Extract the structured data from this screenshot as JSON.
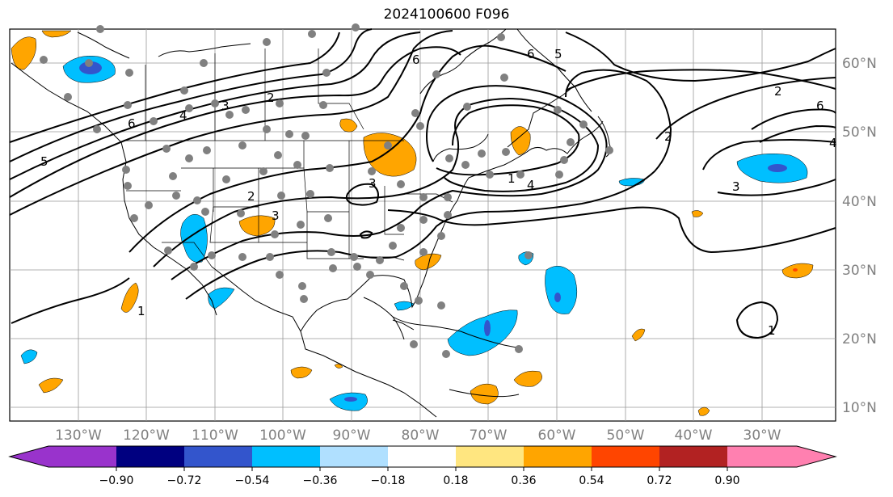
{
  "title": "2024100600 F096",
  "map": {
    "lon_labels": [
      "130°W",
      "120°W",
      "110°W",
      "100°W",
      "90°W",
      "80°W",
      "70°W",
      "60°W",
      "50°W",
      "40°W",
      "30°W"
    ],
    "lat_labels": [
      "60°N",
      "50°N",
      "40°N",
      "30°N",
      "20°N",
      "10°N"
    ],
    "contour_labels": [
      "5",
      "6",
      "4",
      "3",
      "2",
      "6",
      "2",
      "1",
      "3",
      "3",
      "5",
      "6",
      "4",
      "2",
      "3",
      "6",
      "2",
      "4",
      "1",
      "1"
    ]
  },
  "colorbar": {
    "ticks": [
      "−0.90",
      "−0.72",
      "−0.54",
      "−0.36",
      "−0.18",
      "0.18",
      "0.36",
      "0.54",
      "0.72",
      "0.90"
    ],
    "colors": [
      "#9933cc",
      "#000080",
      "#3355cc",
      "#00bfff",
      "#b0e0ff",
      "#ffffff",
      "#ffe680",
      "#ffa500",
      "#ff4500",
      "#b22222",
      "#ff80b0"
    ]
  },
  "fill_colors": {
    "neg_light": "#00bfff",
    "neg_mid": "#3355cc",
    "pos_light": "#ffa500",
    "pos_dark": "#ff4500"
  }
}
